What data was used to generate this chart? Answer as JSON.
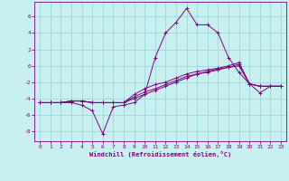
{
  "xlabel": "Windchill (Refroidissement éolien,°C)",
  "bg_color": "#c8f0f0",
  "grid_color": "#a0d8d8",
  "line_color": "#800080",
  "xlim": [
    -0.5,
    23.5
  ],
  "ylim": [
    -9.2,
    7.8
  ],
  "yticks": [
    -8,
    -6,
    -4,
    -2,
    0,
    2,
    4,
    6
  ],
  "xticks": [
    0,
    1,
    2,
    3,
    4,
    5,
    6,
    7,
    8,
    9,
    10,
    11,
    12,
    13,
    14,
    15,
    16,
    17,
    18,
    19,
    20,
    21,
    22,
    23
  ],
  "series": [
    [
      -4.5,
      -4.5,
      -4.5,
      -4.5,
      -4.8,
      -5.5,
      -8.3,
      -5.0,
      -4.8,
      -4.5,
      -3.5,
      1.0,
      4.0,
      5.3,
      7.0,
      5.0,
      5.0,
      4.0,
      1.0,
      -0.8,
      -2.2,
      -3.3,
      -2.5,
      -2.5
    ],
    [
      -4.5,
      -4.5,
      -4.5,
      -4.3,
      -4.3,
      -4.5,
      -4.5,
      -4.5,
      -4.5,
      -4.0,
      -3.5,
      -3.0,
      -2.5,
      -2.0,
      -1.5,
      -1.0,
      -0.8,
      -0.5,
      -0.2,
      0.0,
      -2.2,
      -2.5,
      -2.5,
      -2.5
    ],
    [
      -4.5,
      -4.5,
      -4.5,
      -4.3,
      -4.3,
      -4.5,
      -4.5,
      -4.5,
      -4.5,
      -3.8,
      -3.2,
      -2.8,
      -2.3,
      -1.8,
      -1.3,
      -1.0,
      -0.7,
      -0.4,
      -0.2,
      0.2,
      -2.2,
      -2.5,
      -2.5,
      -2.5
    ],
    [
      -4.5,
      -4.5,
      -4.5,
      -4.3,
      -4.3,
      -4.5,
      -4.5,
      -4.5,
      -4.5,
      -3.5,
      -2.8,
      -2.3,
      -2.0,
      -1.5,
      -1.0,
      -0.7,
      -0.5,
      -0.3,
      0.0,
      0.4,
      -2.2,
      -2.5,
      -2.5,
      -2.5
    ]
  ]
}
